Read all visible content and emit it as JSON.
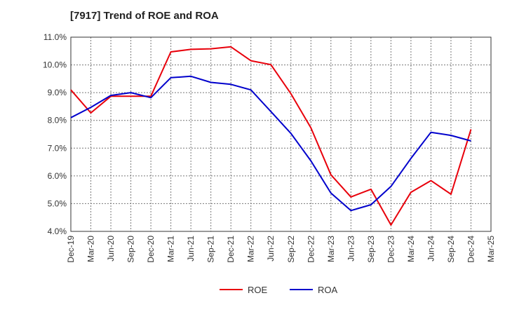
{
  "chart_data": {
    "type": "line",
    "title": "[7917]  Trend of ROE and ROA",
    "xlabel": "",
    "ylabel": "",
    "categories": [
      "Dec-19",
      "Mar-20",
      "Jun-20",
      "Sep-20",
      "Dec-20",
      "Mar-21",
      "Jun-21",
      "Sep-21",
      "Dec-21",
      "Mar-22",
      "Jun-22",
      "Sep-22",
      "Dec-22",
      "Mar-23",
      "Jun-23",
      "Sep-23",
      "Dec-23",
      "Mar-24",
      "Jun-24",
      "Sep-24",
      "Dec-24",
      "Mar-25"
    ],
    "y_ticks": [
      "4.0%",
      "5.0%",
      "6.0%",
      "7.0%",
      "8.0%",
      "9.0%",
      "10.0%",
      "11.0%"
    ],
    "ylim": [
      4.0,
      11.0
    ],
    "grid": true,
    "legend_position": "bottom-center",
    "series": [
      {
        "name": "ROE",
        "color": "#e8000b",
        "values": [
          9.1,
          8.27,
          8.87,
          8.87,
          8.87,
          10.47,
          10.56,
          10.58,
          10.65,
          10.15,
          10.01,
          8.96,
          7.73,
          6.04,
          5.24,
          5.52,
          4.23,
          5.41,
          5.83,
          5.34,
          7.68,
          null
        ]
      },
      {
        "name": "ROA",
        "color": "#0000cc",
        "values": [
          8.1,
          8.47,
          8.9,
          9.0,
          8.82,
          9.54,
          9.59,
          9.37,
          9.3,
          9.1,
          8.32,
          7.53,
          6.54,
          5.38,
          4.75,
          4.96,
          5.62,
          6.63,
          7.57,
          7.46,
          7.26,
          null
        ]
      }
    ]
  }
}
